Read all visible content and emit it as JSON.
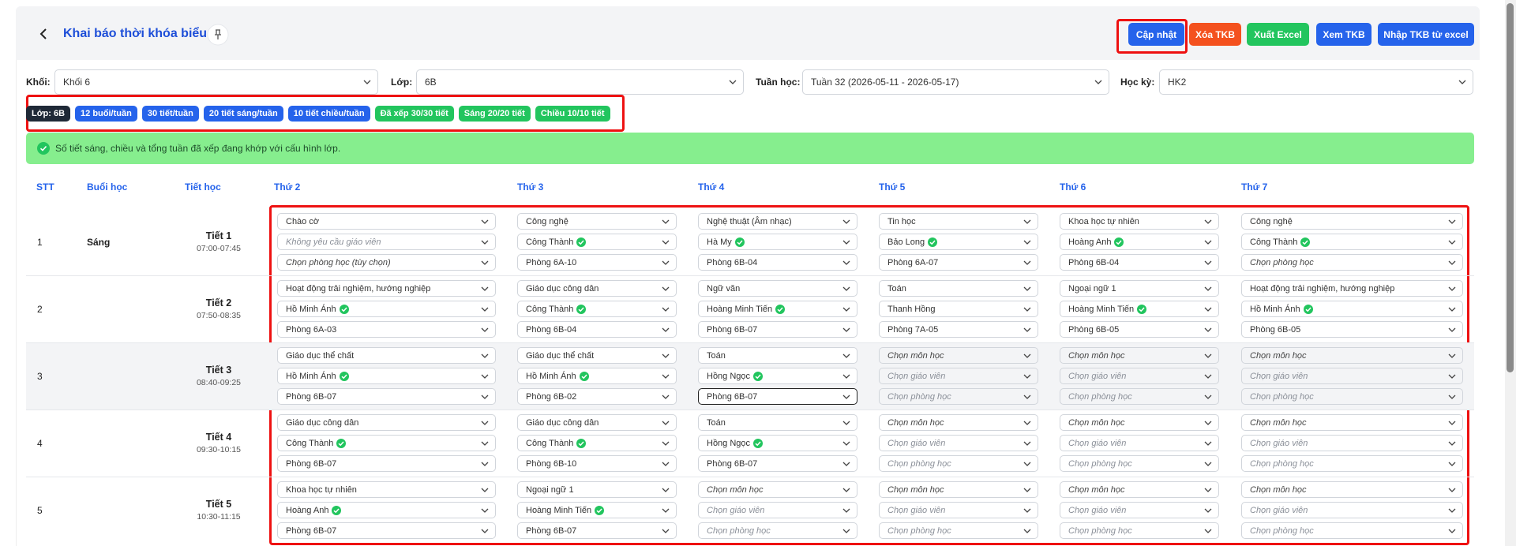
{
  "header": {
    "title": "Khai báo thời khóa biểu",
    "buttons": [
      "Cập nhật",
      "Xóa TKB",
      "Xuất Excel",
      "Xem TKB",
      "Nhập TKB từ excel"
    ]
  },
  "filters": [
    {
      "label": "Khối:",
      "value": "Khối 6"
    },
    {
      "label": "Lớp:",
      "value": "6B"
    },
    {
      "label": "Tuần học:",
      "value": "Tuần 32 (2026-05-11 - 2026-05-17)"
    },
    {
      "label": "Học kỳ:",
      "value": "HK2"
    }
  ],
  "chips": [
    "Lớp: 6B",
    "12 buổi/tuần",
    "30 tiết/tuần",
    "20 tiết sáng/tuần",
    "10 tiết chiều/tuần",
    "Đã xếp 30/30 tiết",
    "Sáng 20/20 tiết",
    "Chiều 10/10 tiết"
  ],
  "alert": "Số tiết sáng, chiều và tổng tuần đã xếp đang khớp với cấu hình lớp.",
  "table": {
    "columns": [
      "STT",
      "Buổi học",
      "Tiết học",
      "Thứ 2",
      "Thứ 3",
      "Thứ 4",
      "Thứ 5",
      "Thứ 6",
      "Thứ 7"
    ],
    "rows": [
      {
        "stt": "1",
        "session": "Sáng",
        "period": "Tiết 1",
        "time": "07:00-07:45",
        "cells": [
          {
            "subject": "Chào cờ",
            "teacher": "Không yêu cầu giáo viên",
            "room": "Chọn phòng học (tùy chọn)",
            "placeholders": [
              "teacher",
              "room"
            ]
          },
          {
            "subject": "Công nghệ",
            "teacher": "Công Thành",
            "room": "Phòng 6A-10",
            "verified": true
          },
          {
            "subject": "Nghệ thuật (Âm nhạc)",
            "teacher": "Hà My",
            "room": "Phòng 6B-04",
            "verified": true
          },
          {
            "subject": "Tin học",
            "teacher": "Bảo Long",
            "room": "Phòng 6A-07",
            "verified": true
          },
          {
            "subject": "Khoa học tự nhiên",
            "teacher": "Hoàng Anh",
            "room": "Phòng 6B-04",
            "verified": true
          },
          {
            "subject": "Công nghệ",
            "teacher": "Công Thành",
            "room": "Chọn phòng học",
            "verified": true,
            "placeholders": [
              "room"
            ]
          }
        ]
      },
      {
        "stt": "2",
        "period": "Tiết 2",
        "time": "07:50-08:35",
        "cells": [
          {
            "subject": "Hoạt động trải nghiệm, hướng nghiệp",
            "teacher": "Hồ Minh Ánh",
            "room": "Phòng 6A-03",
            "verified": true
          },
          {
            "subject": "Giáo dục công dân",
            "teacher": "Công Thành",
            "room": "Phòng 6B-04",
            "verified": true
          },
          {
            "subject": "Ngữ văn",
            "teacher": "Hoàng Minh Tiến",
            "room": "Phòng 6B-07",
            "verified": true
          },
          {
            "subject": "Toán",
            "teacher": "Thanh Hồng",
            "room": "Phòng 7A-05"
          },
          {
            "subject": "Ngoại ngữ 1",
            "teacher": "Hoàng Minh Tiến",
            "room": "Phòng 6B-05",
            "verified": true
          },
          {
            "subject": "Hoạt động trải nghiệm, hướng nghiệp",
            "teacher": "Hồ Minh Ánh",
            "room": "Phòng 6B-05",
            "verified": true
          }
        ]
      },
      {
        "stt": "3",
        "period": "Tiết 3",
        "time": "08:40-09:25",
        "cells": [
          {
            "subject": "Giáo dục thể chất",
            "teacher": "Hồ Minh Ánh",
            "room": "Phòng 6B-07",
            "verified": true
          },
          {
            "subject": "Giáo dục thể chất",
            "teacher": "Hồ Minh Ánh",
            "room": "Phòng 6B-02",
            "verified": true
          },
          {
            "subject": "Toán",
            "teacher": "Hồng Ngọc",
            "room": "Phòng 6B-07",
            "verified": true
          },
          {
            "subject": "Chọn môn học",
            "teacher": "Chọn giáo viên",
            "room": "Chọn phòng học",
            "placeholders": [
              "subject",
              "teacher",
              "room"
            ]
          },
          {
            "subject": "Chọn môn học",
            "teacher": "Chọn giáo viên",
            "room": "Chọn phòng học",
            "placeholders": [
              "subject",
              "teacher",
              "room"
            ]
          },
          {
            "subject": "Chọn môn học",
            "teacher": "Chọn giáo viên",
            "room": "Chọn phòng học",
            "placeholders": [
              "subject",
              "teacher",
              "room"
            ]
          }
        ]
      },
      {
        "stt": "4",
        "period": "Tiết 4",
        "time": "09:30-10:15",
        "cells": [
          {
            "subject": "Giáo dục công dân",
            "teacher": "Công Thành",
            "room": "Phòng 6B-07",
            "verified": true
          },
          {
            "subject": "Giáo dục công dân",
            "teacher": "Công Thành",
            "room": "Phòng 6B-10",
            "verified": true
          },
          {
            "subject": "Toán",
            "teacher": "Hồng Ngọc",
            "room": "Phòng 6B-07",
            "verified": true
          },
          {
            "subject": "Chọn môn học",
            "teacher": "Chọn giáo viên",
            "room": "Chọn phòng học",
            "placeholders": [
              "subject",
              "teacher",
              "room"
            ]
          },
          {
            "subject": "Chọn môn học",
            "teacher": "Chọn giáo viên",
            "room": "Chọn phòng học",
            "placeholders": [
              "subject",
              "teacher",
              "room"
            ]
          },
          {
            "subject": "Chọn môn học",
            "teacher": "Chọn giáo viên",
            "room": "Chọn phòng học",
            "placeholders": [
              "subject",
              "teacher",
              "room"
            ]
          }
        ]
      },
      {
        "stt": "5",
        "period": "Tiết 5",
        "time": "10:30-11:15",
        "cells": [
          {
            "subject": "Khoa học tự nhiên",
            "teacher": "Hoàng Anh",
            "room": "Phòng 6B-07",
            "verified": true
          },
          {
            "subject": "Ngoại ngữ 1",
            "teacher": "Hoàng Minh Tiến",
            "room": "Phòng 6B-07",
            "verified": true
          },
          {
            "subject": "Chọn môn học",
            "teacher": "Chọn giáo viên",
            "room": "Chọn phòng học",
            "placeholders": [
              "subject",
              "teacher",
              "room"
            ]
          },
          {
            "subject": "Chọn môn học",
            "teacher": "Chọn giáo viên",
            "room": "Chọn phòng học",
            "placeholders": [
              "subject",
              "teacher",
              "room"
            ]
          },
          {
            "subject": "Chọn môn học",
            "teacher": "Chọn giáo viên",
            "room": "Chọn phòng học",
            "placeholders": [
              "subject",
              "teacher",
              "room"
            ]
          },
          {
            "subject": "Chọn môn học",
            "teacher": "Chọn giáo viên",
            "room": "Chọn phòng học",
            "placeholders": [
              "subject",
              "teacher",
              "room"
            ]
          }
        ]
      }
    ]
  }
}
